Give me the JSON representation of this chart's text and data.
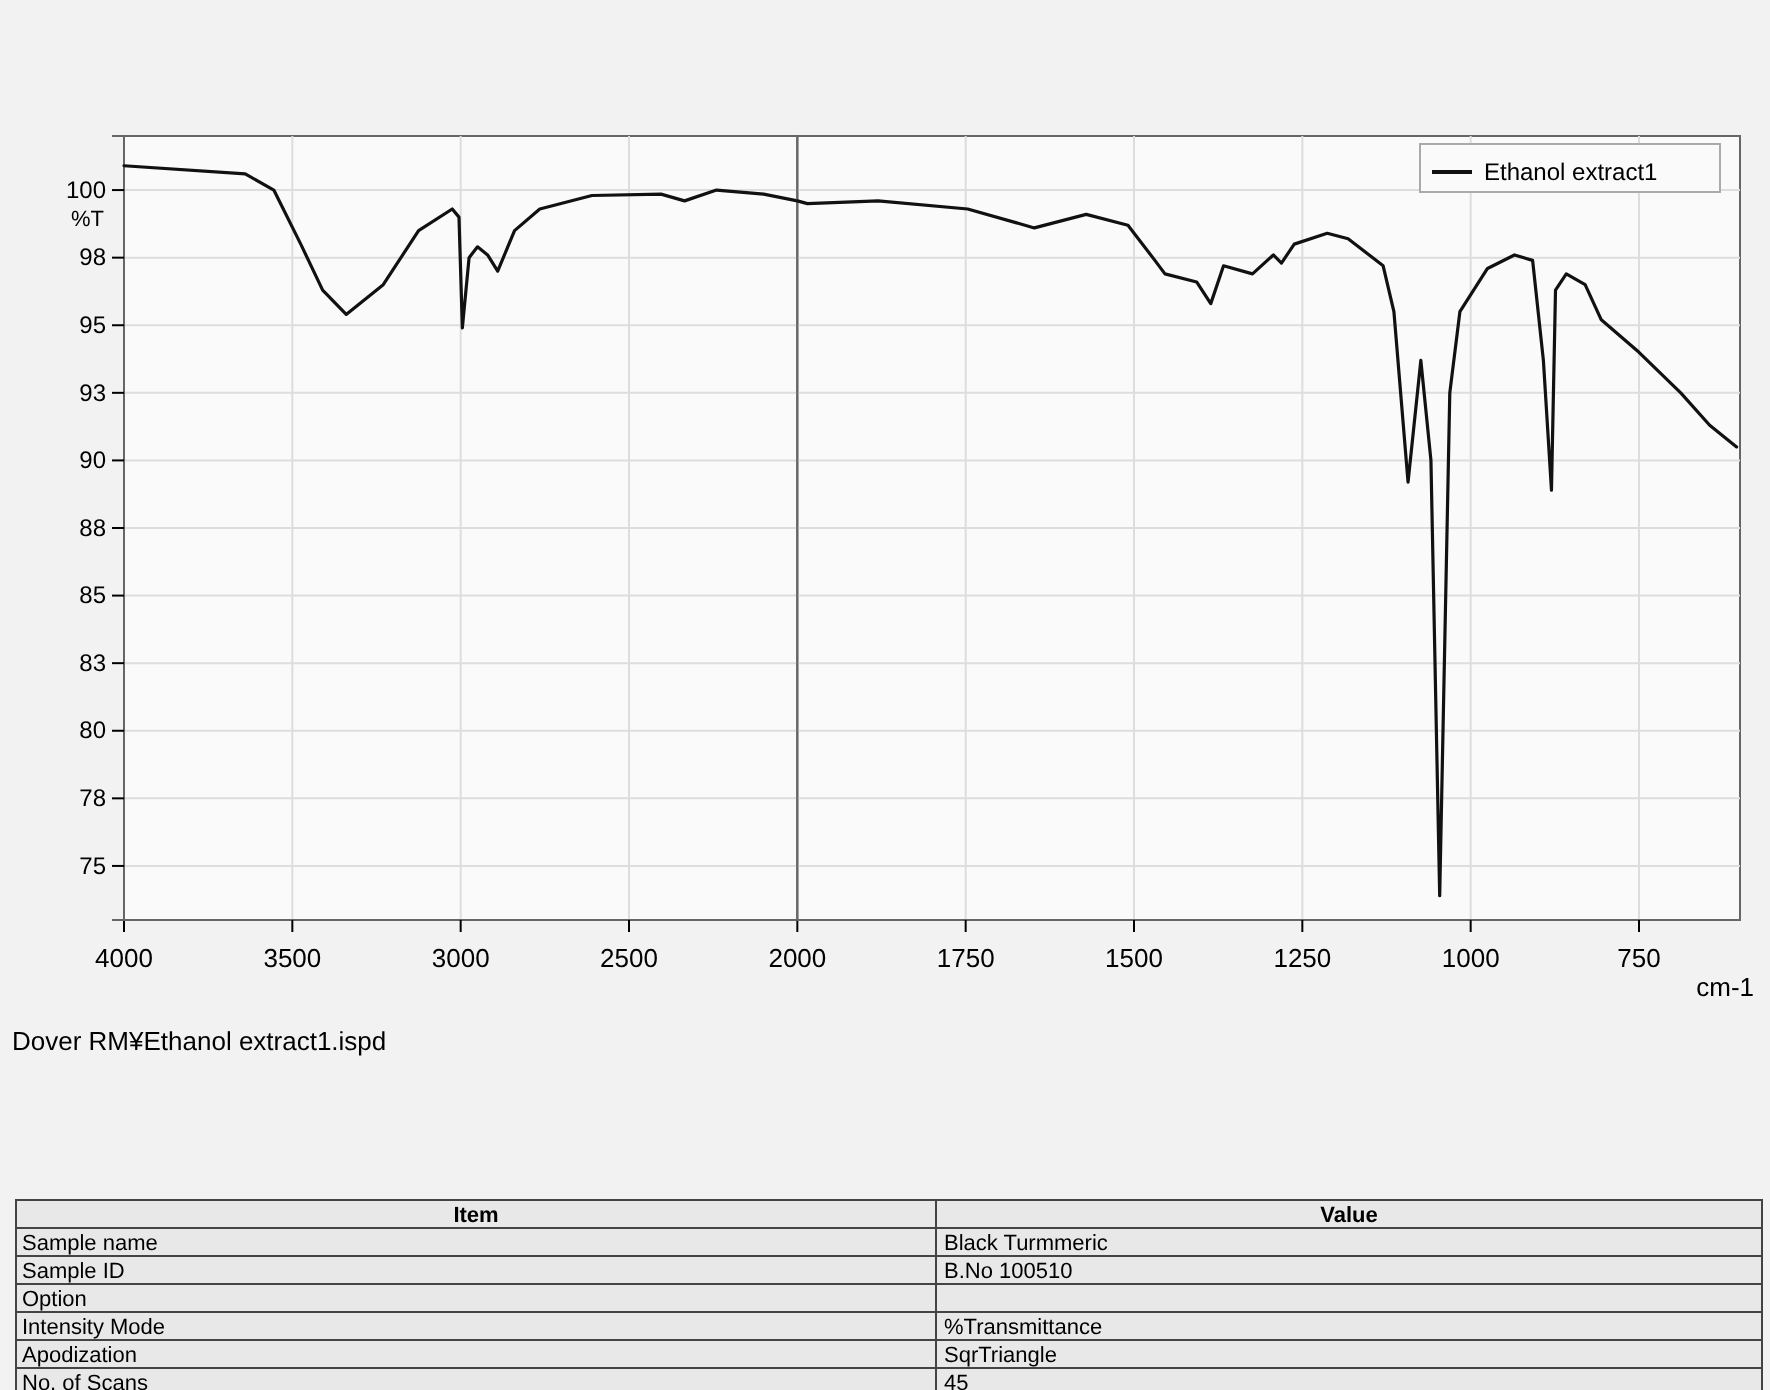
{
  "chart_data": [
    {
      "type": "line",
      "ylabel": "%T",
      "x": [
        4000,
        3640,
        3555,
        3475,
        3410,
        3340,
        3230,
        3125,
        3025,
        3005,
        2995,
        2975,
        2950,
        2920,
        2890,
        2840,
        2765,
        2610,
        2405,
        2335,
        2240,
        2100,
        2000
      ],
      "series": [
        {
          "color": "#111111",
          "values": [
            100.9,
            100.6,
            100,
            98,
            96.3,
            95.4,
            96.5,
            98.5,
            99.3,
            99.0,
            94.9,
            97.5,
            97.9,
            97.6,
            97.0,
            98.5,
            99.3,
            99.8,
            99.85,
            99.6,
            100,
            99.85,
            99.6
          ]
        }
      ],
      "xlim": [
        4000,
        2000
      ],
      "xticks": [
        4000,
        3500,
        3000,
        2500,
        2000
      ],
      "ylim": [
        73,
        102
      ],
      "yticks": [
        75,
        {
          "value": 77.5,
          "label": "78"
        },
        80,
        {
          "value": 82.5,
          "label": "83"
        },
        85,
        {
          "value": 87.5,
          "label": "88"
        },
        90,
        {
          "value": 92.5,
          "label": "93"
        },
        95,
        {
          "value": 97.5,
          "label": "98"
        },
        100
      ],
      "grid": true,
      "annotations": [
        "Dover RM¥Ethanol extract1.ispd",
        "Item\tValue",
        "Sample name\tBlack Turmmeric",
        "Sample ID\tB.No 100510",
        "Option",
        "Intensity Mode\t%Transmittance",
        "Apodization\tSqrTriangle",
        "No. of Scans\t45"
      ]
    },
    {
      "type": "line",
      "xlabel": "cm-1",
      "x": [
        2000,
        1985,
        1880,
        1747,
        1648,
        1571,
        1509,
        1469,
        1454,
        1407,
        1386,
        1367,
        1324,
        1293,
        1281,
        1262,
        1213,
        1182,
        1130,
        1114,
        1093,
        1074,
        1059,
        1046,
        1031,
        1016,
        975,
        935,
        908,
        892,
        880,
        874,
        858,
        830,
        806,
        750,
        688,
        645,
        605
      ],
      "series": [
        {
          "name": "Ethanol extract1",
          "color": "#111111",
          "values": [
            99.6,
            99.5,
            99.6,
            99.3,
            98.6,
            99.1,
            98.7,
            97.4,
            96.9,
            96.6,
            95.8,
            97.2,
            96.9,
            97.6,
            97.3,
            98.0,
            98.4,
            98.2,
            97.2,
            95.5,
            89.2,
            93.7,
            90,
            73.9,
            92.5,
            95.5,
            97.1,
            97.6,
            97.4,
            93.7,
            88.9,
            96.3,
            96.9,
            96.5,
            95.2,
            94.0,
            92.5,
            91.3,
            90.5
          ]
        }
      ],
      "xlim": [
        2000,
        600
      ],
      "xticks": [
        1750,
        1500,
        1250,
        1000,
        750
      ],
      "ylim": [
        73,
        102
      ],
      "yticks": [
        75,
        77.5,
        80,
        82.5,
        85,
        87.5,
        90,
        92.5,
        95,
        97.5,
        100
      ],
      "tick_labels": "x",
      "grid": true,
      "legend": "top right"
    }
  ]
}
